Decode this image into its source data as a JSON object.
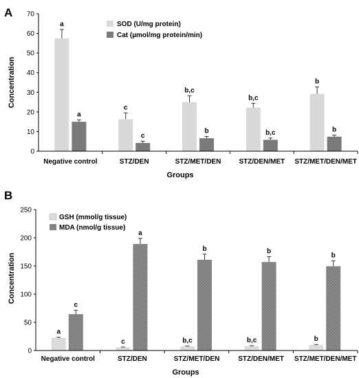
{
  "chart_data": [
    {
      "panel": "A",
      "type": "bar",
      "categories": [
        "Negative control",
        "STZ/DEN",
        "STZ/MET/DEN",
        "STZ/DEN/MET",
        "STZ/MET/DEN/MET"
      ],
      "xlabel": "Groups",
      "ylabel": "Concentration",
      "ylim": [
        0,
        70
      ],
      "yticks": [
        0,
        10,
        20,
        30,
        40,
        50,
        60,
        70
      ],
      "grid": false,
      "legend_position": "top",
      "series": [
        {
          "name": "SOD (U/mg protein)",
          "color": "#d9d9d9",
          "values": [
            57.5,
            16.3,
            25.0,
            22.2,
            29.2
          ],
          "errors": [
            4.5,
            3.2,
            3.2,
            2.2,
            3.5
          ],
          "labels": [
            "a",
            "c",
            "b,c",
            "b,c",
            "b"
          ]
        },
        {
          "name": "Cat (µmol/mg protein/min)",
          "color": "#808080",
          "values": [
            15.0,
            4.2,
            6.6,
            5.8,
            7.4
          ],
          "errors": [
            1.0,
            0.9,
            0.9,
            0.9,
            0.8
          ],
          "labels": [
            "a",
            "c",
            "b",
            "b,c",
            "b"
          ]
        }
      ]
    },
    {
      "panel": "B",
      "type": "bar",
      "categories": [
        "Negative control",
        "STZ/DEN",
        "STZ/MET/DEN",
        "STZ/DEN/MET",
        "STZ/MET/DEN/MET"
      ],
      "xlabel": "Groups",
      "ylabel": "Concentration",
      "ylim": [
        0,
        250
      ],
      "yticks": [
        0,
        50,
        100,
        150,
        200,
        250
      ],
      "grid": false,
      "legend_position": "top-left",
      "series": [
        {
          "name": "GSH (mmol/g tissue)",
          "color": "#d9d9d9",
          "values": [
            22.5,
            5.5,
            7.5,
            8.0,
            10.0
          ],
          "errors": [
            1.0,
            0.6,
            0.6,
            0.6,
            0.7
          ],
          "labels": [
            "a",
            "c",
            "b,c",
            "b,c",
            "b"
          ]
        },
        {
          "name": "MDA (nmol/g tissue)",
          "color": "#808080",
          "values": [
            64.5,
            189.0,
            161.0,
            157.0,
            149.5
          ],
          "errors": [
            7.0,
            10.0,
            10.0,
            9.5,
            9.5
          ],
          "labels": [
            "c",
            "a",
            "b",
            "b",
            "b"
          ]
        }
      ]
    }
  ]
}
